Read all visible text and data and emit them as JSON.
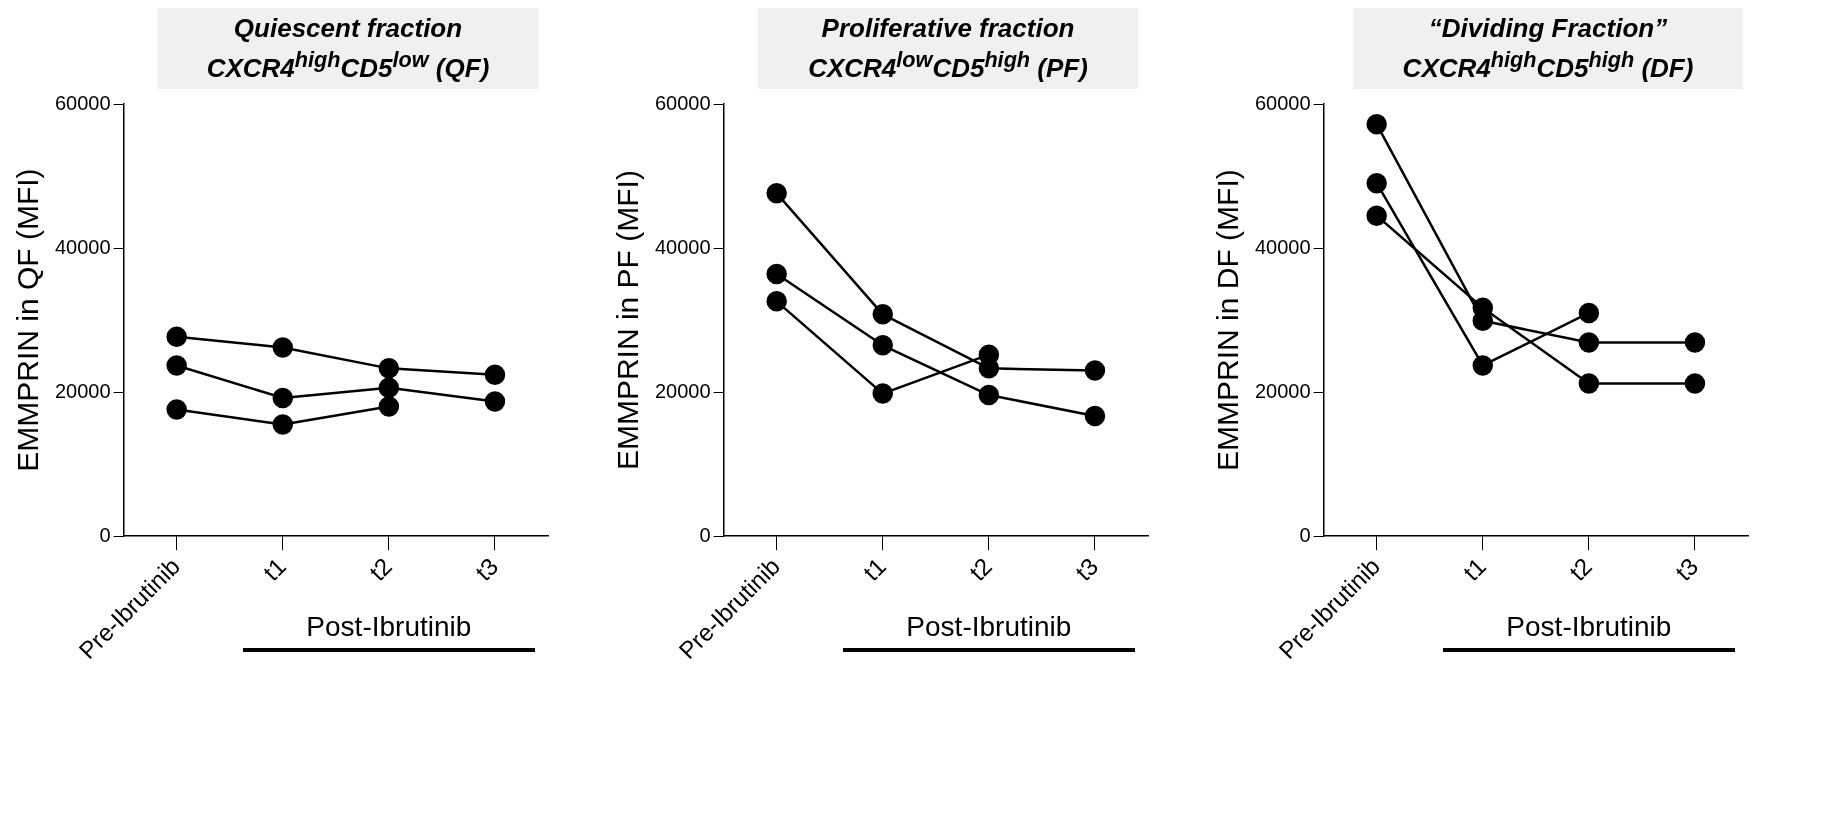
{
  "chart_data": [
    {
      "type": "line",
      "title": "Quiescent fraction",
      "subtitle": "CXCR4$^{high}$CD5$^{low}$ (QF)",
      "ylabel": "EMMPRIN in QF (MFI)",
      "categories": [
        "Pre-Ibrutinib",
        "t1",
        "t2",
        "t3"
      ],
      "ylim": [
        0,
        60000
      ],
      "yticks": [
        0,
        20000,
        40000,
        60000
      ],
      "marker": "circle",
      "line_style": "solid",
      "annotations": [
        "Post-Ibrutinib"
      ],
      "series": [
        {
          "color": "#000000",
          "values": [
            27700,
            26200,
            23300,
            22400
          ]
        },
        {
          "color": "#000000",
          "values": [
            23700,
            19200,
            20600,
            18700
          ]
        },
        {
          "color": "#000000",
          "values": [
            17600,
            15500,
            18000,
            null
          ]
        }
      ]
    },
    {
      "type": "line",
      "title": "Proliferative fraction",
      "subtitle": "CXCR4$^{low}$CD5$^{high}$ (PF)",
      "ylabel": "EMMPRIN in PF (MFI)",
      "categories": [
        "Pre-Ibrutinib",
        "t1",
        "t2",
        "t3"
      ],
      "ylim": [
        0,
        60000
      ],
      "yticks": [
        0,
        20000,
        40000,
        60000
      ],
      "marker": "circle",
      "line_style": "solid",
      "annotations": [
        "Post-Ibrutinib"
      ],
      "series": [
        {
          "color": "#000000",
          "values": [
            47600,
            30800,
            23300,
            23000
          ]
        },
        {
          "color": "#000000",
          "values": [
            36400,
            26500,
            19600,
            16700
          ]
        },
        {
          "color": "#000000",
          "values": [
            32600,
            19800,
            25200,
            null
          ]
        }
      ]
    },
    {
      "type": "line",
      "title": "“Dividing Fraction”",
      "subtitle": "CXCR4$^{high}$CD5$^{high}$ (DF)",
      "ylabel": "EMMPRIN in DF (MFI)",
      "categories": [
        "Pre-Ibrutinib",
        "t1",
        "t2",
        "t3"
      ],
      "ylim": [
        0,
        60000
      ],
      "yticks": [
        0,
        20000,
        40000,
        60000
      ],
      "marker": "circle",
      "line_style": "solid",
      "annotations": [
        "Post-Ibrutinib"
      ],
      "series": [
        {
          "color": "#000000",
          "values": [
            57200,
            29900,
            26900,
            26900
          ]
        },
        {
          "color": "#000000",
          "values": [
            44500,
            31700,
            21200,
            21200
          ]
        },
        {
          "color": "#000000",
          "values": [
            49000,
            23700,
            31000,
            null
          ]
        }
      ]
    }
  ]
}
